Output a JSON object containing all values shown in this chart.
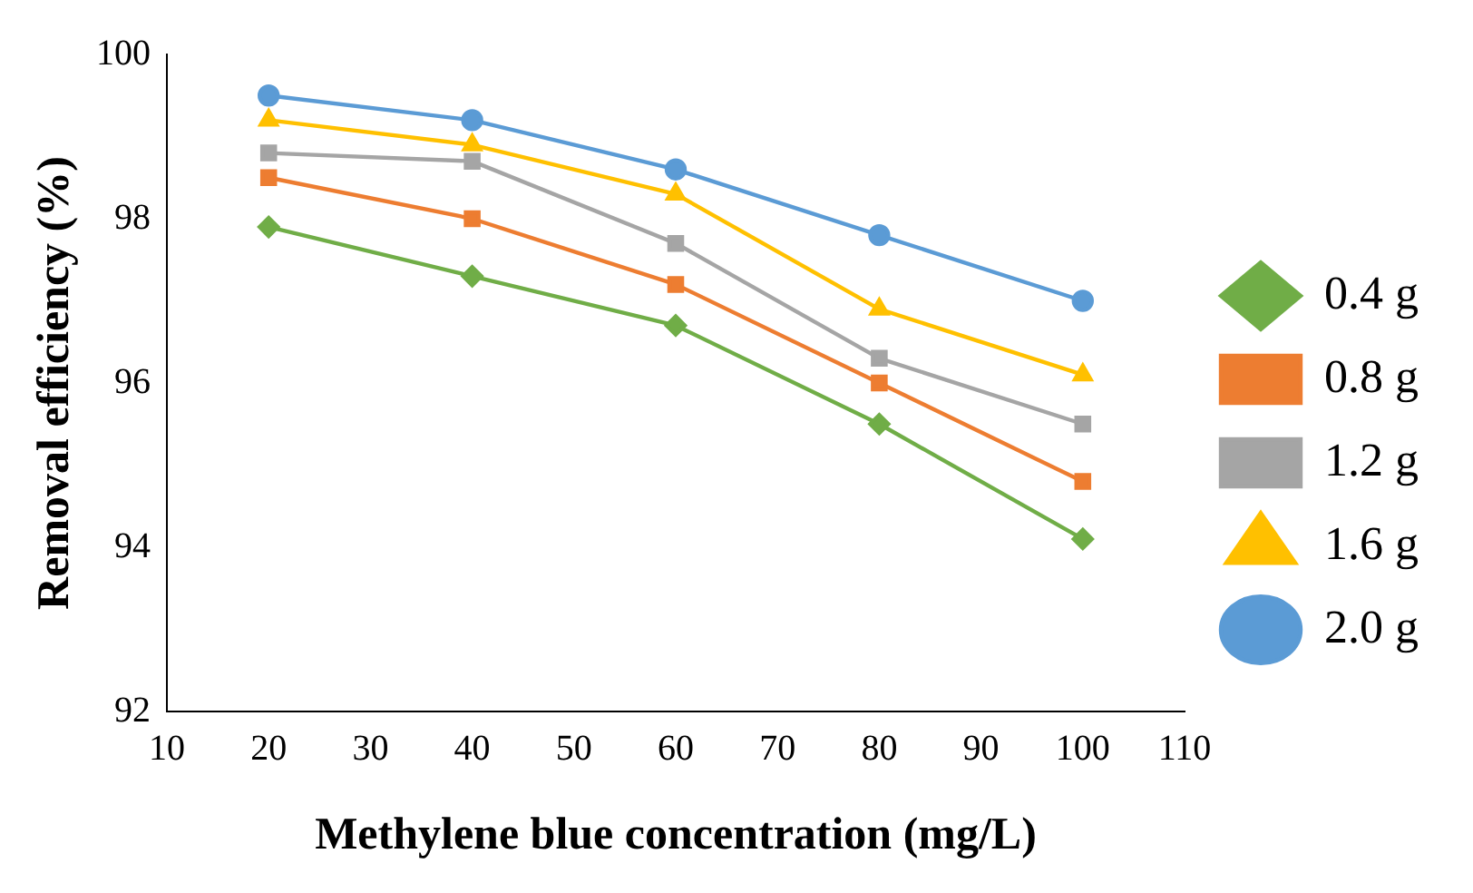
{
  "chart_data": {
    "type": "line",
    "xlabel": "Methylene blue concentration (mg/L)",
    "ylabel": "Removal efficiency (%)",
    "x": [
      20,
      40,
      60,
      80,
      100
    ],
    "xlim": [
      10,
      110
    ],
    "xticks": [
      10,
      20,
      30,
      40,
      50,
      60,
      70,
      80,
      90,
      100,
      110
    ],
    "ylim": [
      92,
      100
    ],
    "yticks": [
      92,
      94,
      96,
      98,
      100
    ],
    "grid": false,
    "legend": "right",
    "series": [
      {
        "name": "0.4 g",
        "color": "#70ad47",
        "marker": "diamond",
        "values": [
          97.9,
          97.3,
          96.7,
          95.5,
          94.1
        ]
      },
      {
        "name": "0.8 g",
        "color": "#ed7d31",
        "marker": "square",
        "values": [
          98.5,
          98.0,
          97.2,
          96.0,
          94.8
        ]
      },
      {
        "name": "1.2 g",
        "color": "#a5a5a5",
        "marker": "square",
        "values": [
          98.8,
          98.7,
          97.7,
          96.3,
          95.5
        ]
      },
      {
        "name": "1.6 g",
        "color": "#ffc000",
        "marker": "triangle",
        "values": [
          99.2,
          98.9,
          98.3,
          96.9,
          96.1
        ]
      },
      {
        "name": "2.0 g",
        "color": "#5b9bd5",
        "marker": "circle",
        "values": [
          99.5,
          99.2,
          98.6,
          97.8,
          97.0
        ]
      }
    ]
  }
}
